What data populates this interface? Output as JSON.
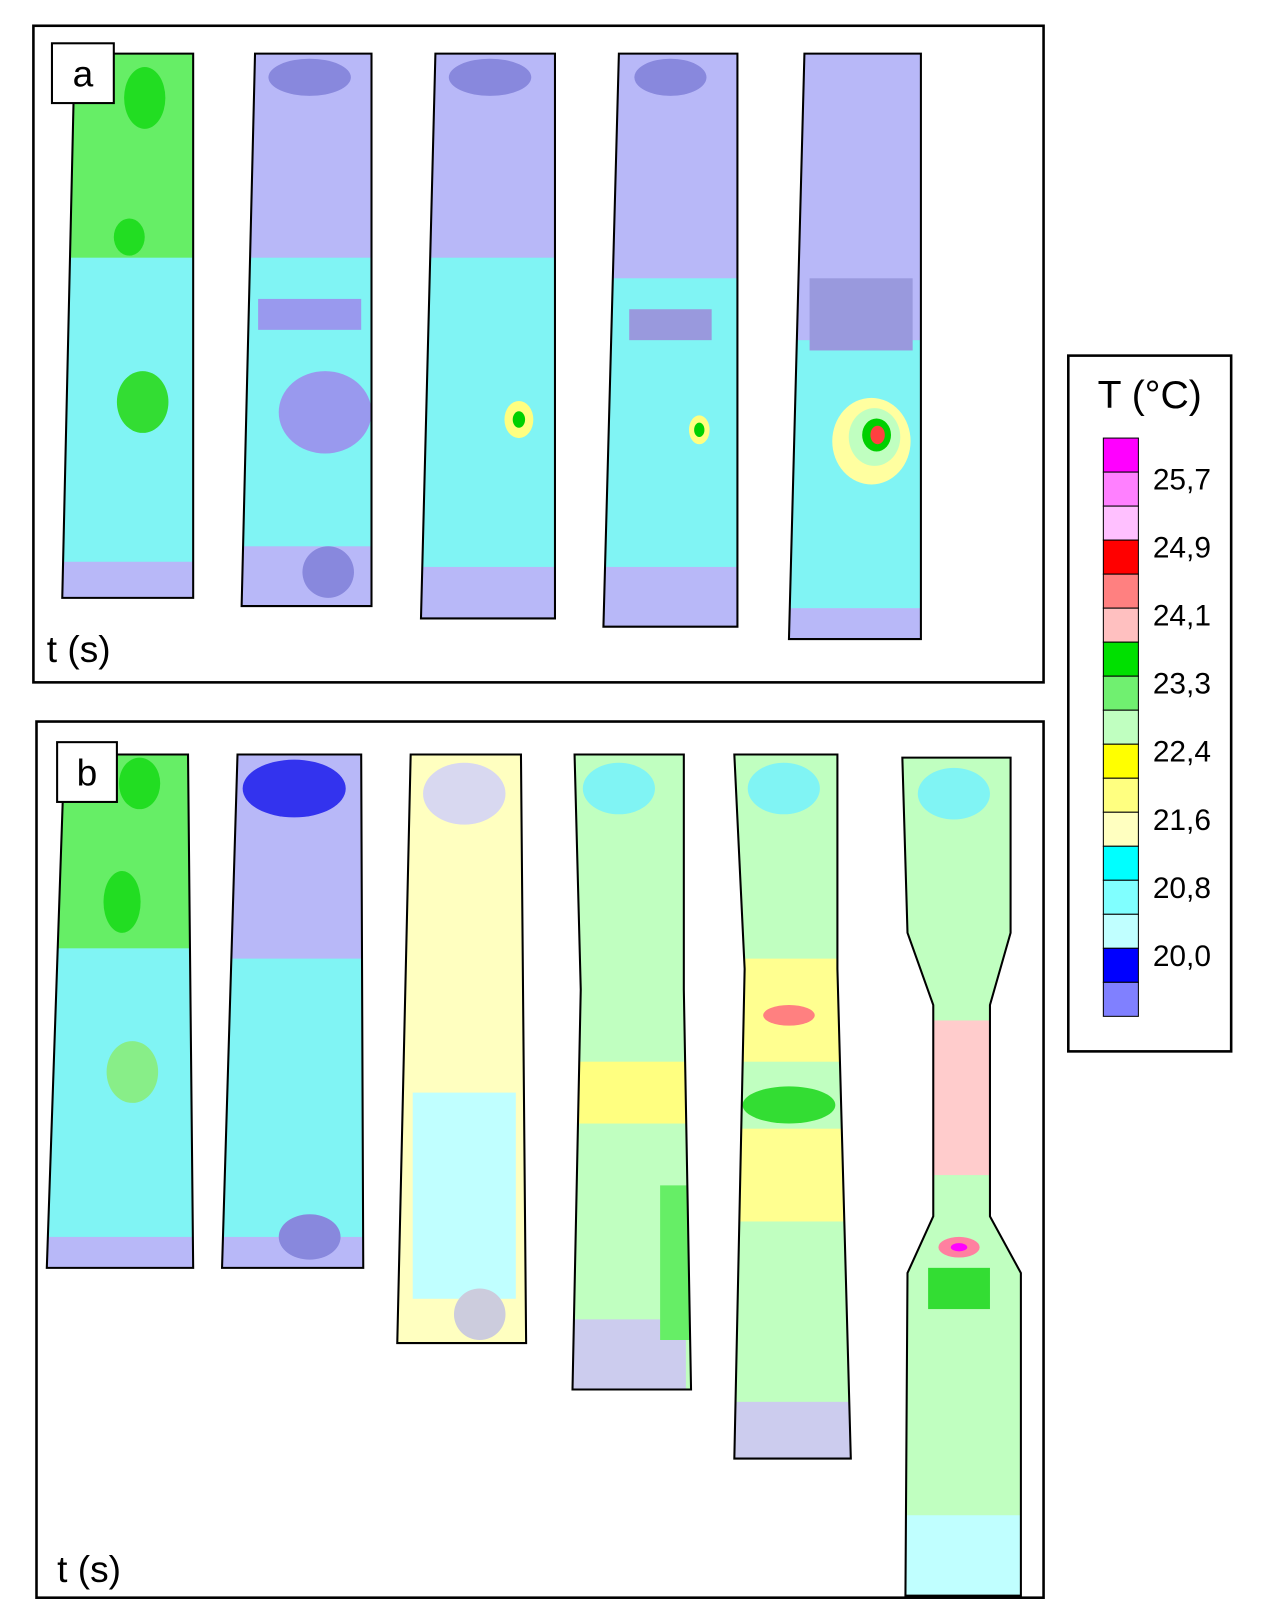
{
  "panel_a": {
    "label": "a",
    "axis_label": "t (s)"
  },
  "panel_b": {
    "label": "b",
    "axis_label": "t (s)"
  },
  "legend": {
    "title": "T (°C)",
    "labels": [
      "25,7",
      "24,9",
      "24,1",
      "23,3",
      "22,4",
      "21,6",
      "20,8",
      "20,0"
    ]
  }
}
